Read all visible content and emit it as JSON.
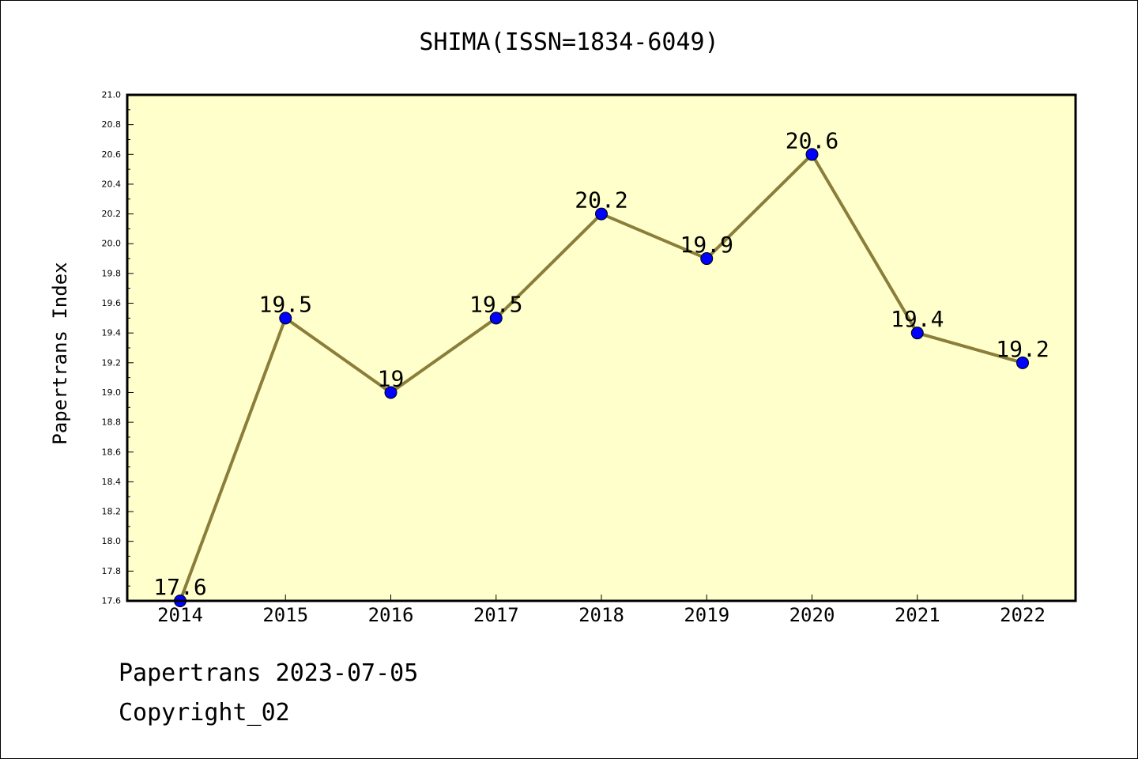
{
  "chart_data": {
    "type": "line",
    "title": "SHIMA(ISSN=1834-6049)",
    "xlabel": "",
    "ylabel": "Papertrans Index",
    "categories": [
      "2014",
      "2015",
      "2016",
      "2017",
      "2018",
      "2019",
      "2020",
      "2021",
      "2022"
    ],
    "series": [
      {
        "values": [
          17.6,
          19.5,
          19.0,
          19.5,
          20.2,
          19.9,
          20.6,
          19.4,
          19.2
        ],
        "data_labels": [
          "17.6",
          "19.5",
          "19",
          "19.5",
          "20.2",
          "19.9",
          "20.6",
          "19.4",
          "19.2"
        ]
      }
    ],
    "ylim": [
      17.6,
      21.0
    ],
    "ytick_labels": [
      "17.6",
      "17.8",
      "18.0",
      "18.2",
      "18.4",
      "18.6",
      "18.8",
      "19.0",
      "19.2",
      "19.4",
      "19.6",
      "19.8",
      "20.0",
      "20.2",
      "20.4",
      "20.6",
      "20.8",
      "21.0"
    ],
    "grid": false,
    "legend": "none",
    "colors": {
      "plot_background": "#ffffcc",
      "line": "#8b7d3a",
      "marker": "#0000ff"
    }
  },
  "footer": {
    "line1": "Papertrans 2023-07-05",
    "line2": "Copyright_02"
  }
}
